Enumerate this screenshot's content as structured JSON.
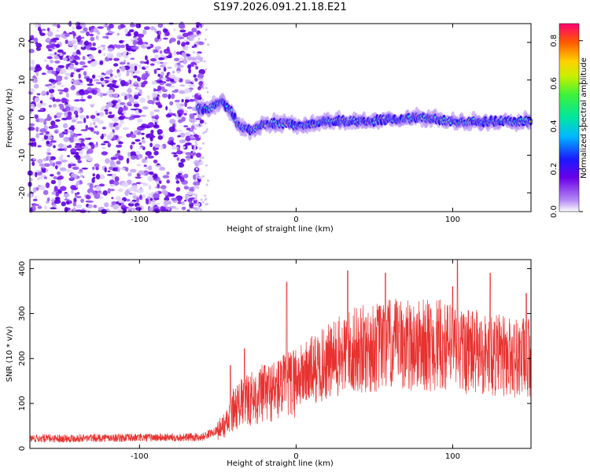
{
  "title": "S197.2026.091.21.18.E21",
  "chart_data": [
    {
      "type": "heatmap",
      "name": "spectrogram",
      "xlabel": "Height of straight line (km)",
      "ylabel": "Frequency (Hz)",
      "xlim": [
        -170,
        150
      ],
      "ylim": [
        -25,
        25
      ],
      "xticks": [
        -100,
        0,
        100
      ],
      "yticks": [
        -20,
        -10,
        0,
        10,
        20
      ],
      "xtick_labels": [
        "-100",
        "0",
        "100"
      ],
      "ytick_labels": [
        "-20",
        "-10",
        "0",
        "10",
        "20"
      ],
      "colorbar": {
        "label": "Normalized spectral amplitude",
        "range": [
          0.0,
          0.88
        ],
        "ticks": [
          0.0,
          0.2,
          0.4,
          0.6,
          0.8
        ],
        "tick_labels": [
          "0.0",
          "0.2",
          "0.4",
          "0.6",
          "0.8"
        ]
      },
      "signal_track": [
        {
          "x": -63,
          "f": 2.5
        },
        {
          "x": -55,
          "f": 2.5
        },
        {
          "x": -48,
          "f": 4
        },
        {
          "x": -42,
          "f": 2
        },
        {
          "x": -37,
          "f": -2
        },
        {
          "x": -32,
          "f": -3
        },
        {
          "x": -27,
          "f": -3.5
        },
        {
          "x": -22,
          "f": -2
        },
        {
          "x": -17,
          "f": -1.5
        },
        {
          "x": -12,
          "f": -1.5
        },
        {
          "x": -5,
          "f": -1.5
        },
        {
          "x": 0,
          "f": -2
        },
        {
          "x": 10,
          "f": -1.8
        },
        {
          "x": 20,
          "f": -1
        },
        {
          "x": 40,
          "f": -1
        },
        {
          "x": 60,
          "f": -0.5
        },
        {
          "x": 80,
          "f": 0
        },
        {
          "x": 100,
          "f": -1
        },
        {
          "x": 120,
          "f": -1
        },
        {
          "x": 150,
          "f": -1
        }
      ]
    },
    {
      "type": "line",
      "name": "snr",
      "xlabel": "Height of straight line (km)",
      "ylabel": "SNR (10 * v/v)",
      "xlim": [
        -170,
        150
      ],
      "ylim": [
        0,
        420
      ],
      "xticks": [
        -100,
        0,
        100
      ],
      "yticks": [
        0,
        100,
        200,
        300,
        400
      ],
      "xtick_labels": [
        "-100",
        "0",
        "100"
      ],
      "ytick_labels": [
        "0",
        "100",
        "200",
        "300",
        "400"
      ],
      "color": "#e8322f",
      "envelope": [
        {
          "x": -170,
          "y": 22
        },
        {
          "x": -60,
          "y": 25
        },
        {
          "x": -48,
          "y": 45
        },
        {
          "x": -43,
          "y": 60
        },
        {
          "x": -40,
          "y": 90
        },
        {
          "x": -30,
          "y": 110
        },
        {
          "x": -18,
          "y": 125
        },
        {
          "x": -5,
          "y": 140
        },
        {
          "x": 5,
          "y": 165
        },
        {
          "x": 20,
          "y": 190
        },
        {
          "x": 35,
          "y": 215
        },
        {
          "x": 60,
          "y": 230
        },
        {
          "x": 90,
          "y": 230
        },
        {
          "x": 120,
          "y": 210
        },
        {
          "x": 150,
          "y": 200
        }
      ],
      "peaks": [
        {
          "x": -42,
          "y": 185
        },
        {
          "x": -33,
          "y": 222
        },
        {
          "x": -20,
          "y": 185
        },
        {
          "x": -6,
          "y": 370
        },
        {
          "x": 33,
          "y": 395
        },
        {
          "x": 57,
          "y": 390
        },
        {
          "x": 100,
          "y": 360
        },
        {
          "x": 103,
          "y": 420
        },
        {
          "x": 124,
          "y": 390
        },
        {
          "x": 147,
          "y": 345
        }
      ]
    }
  ]
}
